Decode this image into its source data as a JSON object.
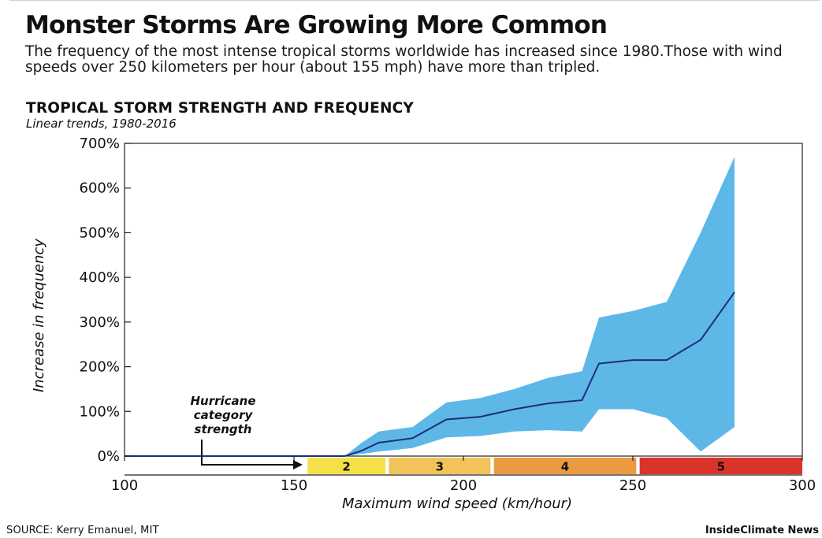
{
  "header": {
    "title": "Monster Storms Are Growing More Common",
    "subtitle": "The frequency of the most intense tropical storms worldwide has increased since 1980.Those with wind speeds over 250 kilometers per hour (about 155 mph) have more than tripled."
  },
  "footer": {
    "source": "SOURCE: Kerry Emanuel, MIT",
    "credit": "InsideClimate News"
  },
  "chart_data": {
    "type": "area",
    "title": "TROPICAL STORM STRENGTH AND FREQUENCY",
    "subtitle": "Linear trends, 1980-2016",
    "xlabel": "Maximum wind speed (km/hour)",
    "ylabel": "Increase in frequency",
    "xlim": [
      100,
      300
    ],
    "ylim": [
      0,
      700
    ],
    "x_ticks": [
      100,
      150,
      200,
      250,
      300
    ],
    "y_ticks": [
      0,
      100,
      200,
      300,
      400,
      500,
      600,
      700
    ],
    "y_tick_suffix": "%",
    "grid": false,
    "series": [
      {
        "kind": "line",
        "color": "#1f2d7a",
        "x": [
          100,
          165,
          170,
          175,
          185,
          195,
          205,
          215,
          225,
          235,
          240,
          250,
          260,
          270,
          280
        ],
        "y": [
          0,
          0,
          12,
          30,
          40,
          82,
          88,
          105,
          118,
          125,
          207,
          215,
          215,
          260,
          367
        ]
      },
      {
        "kind": "band",
        "color": "#5db8e8",
        "x": [
          165,
          170,
          175,
          185,
          195,
          205,
          215,
          225,
          235,
          240,
          250,
          260,
          270,
          280
        ],
        "upper": [
          0,
          30,
          55,
          65,
          120,
          130,
          150,
          175,
          190,
          310,
          325,
          345,
          500,
          670
        ],
        "lower": [
          0,
          5,
          10,
          18,
          42,
          45,
          55,
          58,
          55,
          105,
          105,
          85,
          10,
          65
        ]
      }
    ],
    "categories_scale": [
      {
        "label": "2",
        "from": 154,
        "to": 177,
        "color": "#f6e04a"
      },
      {
        "label": "3",
        "from": 178,
        "to": 208,
        "color": "#f2c35a"
      },
      {
        "label": "4",
        "from": 209,
        "to": 251,
        "color": "#ec9a42"
      },
      {
        "label": "5",
        "from": 252,
        "to": 300,
        "color": "#d9332a"
      }
    ],
    "annotation": {
      "text": "Hurricane category strength",
      "lines": [
        "Hurricane",
        "category",
        "strength"
      ]
    }
  }
}
